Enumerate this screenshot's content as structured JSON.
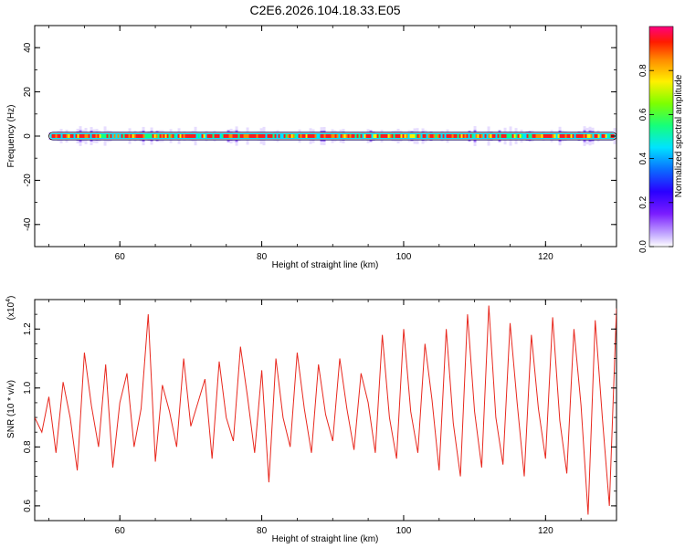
{
  "title": "C2E6.2026.104.18.33.E05",
  "chart_data": [
    {
      "type": "heatmap",
      "xlabel": "Height of straight line (km)",
      "ylabel": "Frequency (Hz)",
      "xlim": [
        48,
        130
      ],
      "ylim": [
        -50,
        50
      ],
      "x_ticks": [
        "60",
        "80",
        "100",
        "120"
      ],
      "y_ticks": [
        "40",
        "20",
        "0",
        "-20",
        "-40"
      ],
      "colorbar": {
        "label": "Normalized spectral amplitude",
        "ticks": [
          "0.0",
          "0.2",
          "0.4",
          "0.6",
          "0.8"
        ],
        "range": [
          0,
          1
        ]
      },
      "signal_frequency_hz": 0,
      "signal_start_km": 50,
      "signal_end_km": 130
    },
    {
      "type": "line",
      "xlabel": "Height of straight line (km)",
      "ylabel": "SNR (10 * v/v)",
      "scale_label_base": "(x10",
      "scale_label_exp": "4",
      "scale_label_close": ")",
      "xlim": [
        48,
        130
      ],
      "ylim": [
        0.55,
        1.3
      ],
      "x_ticks": [
        "60",
        "80",
        "100",
        "120"
      ],
      "y_ticks": [
        "1.2",
        "1.0",
        "0.8",
        "0.6"
      ],
      "series": [
        {
          "color": "#e8281e",
          "x": [
            48,
            49,
            50,
            51,
            52,
            53,
            54,
            55,
            56,
            57,
            58,
            59,
            60,
            61,
            62,
            63,
            64,
            65,
            66,
            67,
            68,
            69,
            70,
            71,
            72,
            73,
            74,
            75,
            76,
            77,
            78,
            79,
            80,
            81,
            82,
            83,
            84,
            85,
            86,
            87,
            88,
            89,
            90,
            91,
            92,
            93,
            94,
            95,
            96,
            97,
            98,
            99,
            100,
            101,
            102,
            103,
            104,
            105,
            106,
            107,
            108,
            109,
            110,
            111,
            112,
            113,
            114,
            115,
            116,
            117,
            118,
            119,
            120,
            121,
            122,
            123,
            124,
            125,
            126,
            127,
            128,
            129,
            130
          ],
          "values": [
            0.9,
            0.85,
            0.97,
            0.78,
            1.02,
            0.9,
            0.72,
            1.12,
            0.94,
            0.8,
            1.08,
            0.73,
            0.95,
            1.05,
            0.8,
            0.93,
            1.25,
            0.75,
            1.01,
            0.92,
            0.8,
            1.1,
            0.87,
            0.95,
            1.03,
            0.76,
            1.09,
            0.9,
            0.82,
            1.14,
            0.97,
            0.78,
            1.06,
            0.68,
            1.1,
            0.9,
            0.8,
            1.12,
            0.93,
            0.78,
            1.08,
            0.91,
            0.82,
            1.1,
            0.93,
            0.79,
            1.05,
            0.95,
            0.78,
            1.18,
            0.9,
            0.76,
            1.2,
            0.92,
            0.78,
            1.15,
            0.96,
            0.72,
            1.2,
            0.88,
            0.7,
            1.25,
            0.92,
            0.73,
            1.28,
            0.9,
            0.74,
            1.22,
            0.95,
            0.7,
            1.18,
            0.93,
            0.76,
            1.24,
            0.89,
            0.71,
            1.2,
            0.94,
            0.57,
            1.23,
            0.9,
            0.6,
            1.27
          ]
        }
      ]
    }
  ]
}
